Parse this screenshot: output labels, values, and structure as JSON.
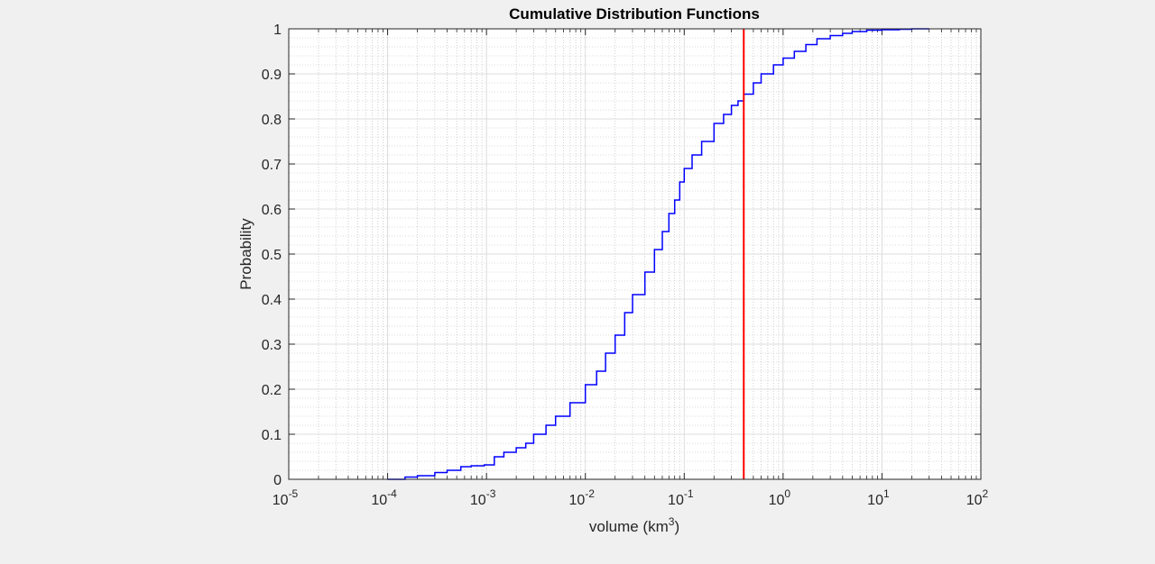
{
  "chart_data": {
    "type": "line",
    "title": "Cumulative Distribution Functions",
    "xlabel": "volume (km",
    "xlabel_sup": "3",
    "xlabel_close": ")",
    "ylabel": "Probability",
    "xscale": "log",
    "xlim": [
      1e-05,
      100
    ],
    "ylim": [
      0,
      1
    ],
    "grid": true,
    "minor_grid": true,
    "x_ticks": [
      {
        "value": 1e-05,
        "base": "10",
        "exp": "-5"
      },
      {
        "value": 0.0001,
        "base": "10",
        "exp": "-4"
      },
      {
        "value": 0.001,
        "base": "10",
        "exp": "-3"
      },
      {
        "value": 0.01,
        "base": "10",
        "exp": "-2"
      },
      {
        "value": 0.1,
        "base": "10",
        "exp": "-1"
      },
      {
        "value": 1,
        "base": "10",
        "exp": "0"
      },
      {
        "value": 10,
        "base": "10",
        "exp": "1"
      },
      {
        "value": 100,
        "base": "10",
        "exp": "2"
      }
    ],
    "y_ticks": [
      {
        "value": 0,
        "label": "0"
      },
      {
        "value": 0.1,
        "label": "0.1"
      },
      {
        "value": 0.2,
        "label": "0.2"
      },
      {
        "value": 0.3,
        "label": "0.3"
      },
      {
        "value": 0.4,
        "label": "0.4"
      },
      {
        "value": 0.5,
        "label": "0.5"
      },
      {
        "value": 0.6,
        "label": "0.6"
      },
      {
        "value": 0.7,
        "label": "0.7"
      },
      {
        "value": 0.8,
        "label": "0.8"
      },
      {
        "value": 0.9,
        "label": "0.9"
      },
      {
        "value": 1,
        "label": "1"
      }
    ],
    "series": [
      {
        "color": "#0000ff",
        "x": [
          0.0001,
          0.00015,
          0.0002,
          0.0003,
          0.0004,
          0.00055,
          0.0007,
          0.00095,
          0.0012,
          0.0015,
          0.002,
          0.0025,
          0.003,
          0.004,
          0.005,
          0.007,
          0.01,
          0.013,
          0.016,
          0.02,
          0.025,
          0.03,
          0.04,
          0.05,
          0.06,
          0.07,
          0.08,
          0.09,
          0.1,
          0.12,
          0.15,
          0.2,
          0.25,
          0.3,
          0.35,
          0.4,
          0.5,
          0.6,
          0.8,
          1.0,
          1.3,
          1.7,
          2.2,
          3,
          4,
          5,
          7,
          10,
          15,
          20,
          30
        ],
        "y": [
          0.0,
          0.005,
          0.008,
          0.015,
          0.02,
          0.028,
          0.03,
          0.032,
          0.05,
          0.06,
          0.07,
          0.08,
          0.1,
          0.12,
          0.14,
          0.17,
          0.21,
          0.24,
          0.28,
          0.32,
          0.37,
          0.41,
          0.46,
          0.51,
          0.55,
          0.59,
          0.62,
          0.66,
          0.69,
          0.72,
          0.75,
          0.79,
          0.81,
          0.83,
          0.84,
          0.855,
          0.88,
          0.9,
          0.92,
          0.935,
          0.95,
          0.965,
          0.978,
          0.985,
          0.99,
          0.994,
          0.997,
          0.998,
          0.999,
          1.0,
          1.0
        ]
      }
    ],
    "reference_line": {
      "x": 0.4,
      "color": "#ff0000"
    }
  }
}
